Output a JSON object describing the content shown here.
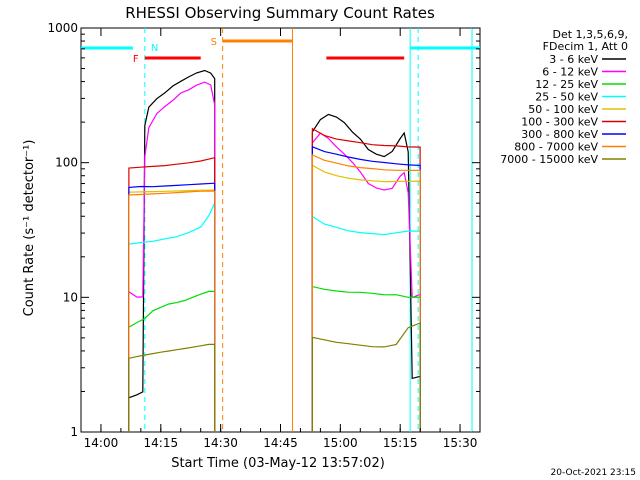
{
  "chart_data": {
    "type": "line",
    "title": "RHESSI Observing Summary Count Rates",
    "xlabel": "Start Time (03-May-12 13:57:02)",
    "ylabel": "Count Rate (s⁻¹ detector⁻¹)",
    "yscale": "log",
    "ylim": [
      1,
      1000
    ],
    "xlim_minutes": [
      835,
      935
    ],
    "x_ticks": [
      {
        "label": "14:00",
        "minute": 840
      },
      {
        "label": "14:15",
        "minute": 855
      },
      {
        "label": "14:30",
        "minute": 870
      },
      {
        "label": "14:45",
        "minute": 885
      },
      {
        "label": "15:00",
        "minute": 900
      },
      {
        "label": "15:15",
        "minute": 915
      },
      {
        "label": "15:30",
        "minute": 930
      }
    ],
    "y_ticks": [
      {
        "label": "1",
        "value": 1
      },
      {
        "label": "10",
        "value": 10
      },
      {
        "label": "100",
        "value": 100
      },
      {
        "label": "1000",
        "value": 1000
      }
    ],
    "legend_header": [
      "Det 1,3,5,6,9,",
      "FDecim 1, Att 0"
    ],
    "legend_position": "right",
    "series": [
      {
        "name": "3 - 6 keV",
        "color": "#000000",
        "seg1": [
          [
            847,
            1.8
          ],
          [
            849,
            1.9
          ],
          [
            850.5,
            2.0
          ],
          [
            851,
            190
          ],
          [
            852,
            260
          ],
          [
            854,
            300
          ],
          [
            856,
            330
          ],
          [
            858,
            370
          ],
          [
            860,
            400
          ],
          [
            862,
            430
          ],
          [
            864,
            460
          ],
          [
            866,
            480
          ],
          [
            867.5,
            460
          ],
          [
            868.5,
            420
          ]
        ],
        "seg2": [
          [
            893,
            170
          ],
          [
            895,
            210
          ],
          [
            897,
            230
          ],
          [
            899,
            220
          ],
          [
            901,
            200
          ],
          [
            903,
            170
          ],
          [
            905,
            150
          ],
          [
            907,
            125
          ],
          [
            909,
            115
          ],
          [
            911,
            110
          ],
          [
            913,
            120
          ],
          [
            915,
            150
          ],
          [
            916,
            165
          ],
          [
            917,
            120
          ],
          [
            918,
            2.5
          ],
          [
            920,
            2.6
          ]
        ]
      },
      {
        "name": "6 - 12 keV",
        "color": "#ff00ff",
        "seg1": [
          [
            847,
            11
          ],
          [
            849,
            10
          ],
          [
            850.5,
            10
          ],
          [
            851,
            110
          ],
          [
            852,
            180
          ],
          [
            854,
            230
          ],
          [
            856,
            260
          ],
          [
            858,
            290
          ],
          [
            860,
            330
          ],
          [
            862,
            350
          ],
          [
            864,
            380
          ],
          [
            866,
            400
          ],
          [
            867.5,
            380
          ],
          [
            868.5,
            270
          ]
        ],
        "seg2": [
          [
            893,
            140
          ],
          [
            895,
            165
          ],
          [
            897,
            150
          ],
          [
            899,
            130
          ],
          [
            901,
            115
          ],
          [
            903,
            100
          ],
          [
            905,
            85
          ],
          [
            907,
            70
          ],
          [
            909,
            65
          ],
          [
            911,
            63
          ],
          [
            913,
            65
          ],
          [
            915,
            80
          ],
          [
            916,
            85
          ],
          [
            917,
            60
          ],
          [
            918,
            10
          ],
          [
            920,
            10.5
          ]
        ]
      },
      {
        "name": "12 - 25 keV",
        "color": "#00dd00",
        "seg1": [
          [
            847,
            6
          ],
          [
            849,
            6.5
          ],
          [
            851,
            7
          ],
          [
            853,
            8
          ],
          [
            855,
            8.5
          ],
          [
            857,
            9
          ],
          [
            859,
            9.2
          ],
          [
            861,
            9.5
          ],
          [
            863,
            10
          ],
          [
            865,
            10.5
          ],
          [
            867,
            11
          ],
          [
            868.5,
            11
          ]
        ],
        "seg2": [
          [
            893,
            12
          ],
          [
            896,
            11.5
          ],
          [
            899,
            11.2
          ],
          [
            902,
            11
          ],
          [
            905,
            11
          ],
          [
            908,
            10.8
          ],
          [
            911,
            10.5
          ],
          [
            914,
            10.5
          ],
          [
            917,
            10
          ],
          [
            920,
            10
          ]
        ]
      },
      {
        "name": "25 - 50 keV",
        "color": "#00ffff",
        "seg1": [
          [
            847,
            25
          ],
          [
            850,
            25.5
          ],
          [
            853,
            26
          ],
          [
            856,
            27
          ],
          [
            859,
            28
          ],
          [
            862,
            30
          ],
          [
            865,
            33
          ],
          [
            867,
            40
          ],
          [
            868.5,
            50
          ]
        ],
        "seg2": [
          [
            893,
            40
          ],
          [
            896,
            35
          ],
          [
            899,
            33
          ],
          [
            902,
            31
          ],
          [
            905,
            30
          ],
          [
            908,
            29.5
          ],
          [
            911,
            29
          ],
          [
            914,
            30
          ],
          [
            917,
            31
          ],
          [
            920,
            31
          ]
        ]
      },
      {
        "name": "50 - 100 keV",
        "color": "#e0c000",
        "seg1": [
          [
            847,
            60
          ],
          [
            850,
            60.5
          ],
          [
            853,
            61
          ],
          [
            856,
            61.5
          ],
          [
            859,
            62
          ],
          [
            862,
            62.5
          ],
          [
            865,
            63
          ],
          [
            868.5,
            63
          ]
        ],
        "seg2": [
          [
            893,
            95
          ],
          [
            896,
            85
          ],
          [
            899,
            80
          ],
          [
            902,
            77
          ],
          [
            905,
            75
          ],
          [
            908,
            74
          ],
          [
            911,
            73
          ],
          [
            914,
            73
          ],
          [
            917,
            73
          ],
          [
            920,
            73
          ]
        ]
      },
      {
        "name": "100 - 300 keV",
        "color": "#dd0000",
        "seg1": [
          [
            847,
            92
          ],
          [
            850,
            93
          ],
          [
            853,
            94
          ],
          [
            856,
            95
          ],
          [
            859,
            97
          ],
          [
            862,
            99
          ],
          [
            865,
            102
          ],
          [
            868.5,
            108
          ]
        ],
        "seg2": [
          [
            893,
            180
          ],
          [
            896,
            160
          ],
          [
            899,
            150
          ],
          [
            902,
            145
          ],
          [
            905,
            140
          ],
          [
            908,
            135
          ],
          [
            911,
            133
          ],
          [
            914,
            132
          ],
          [
            917,
            130
          ],
          [
            920,
            130
          ]
        ]
      },
      {
        "name": "300 - 800 keV",
        "color": "#0000ff",
        "seg1": [
          [
            847,
            65
          ],
          [
            850,
            66
          ],
          [
            853,
            66
          ],
          [
            856,
            67
          ],
          [
            859,
            68
          ],
          [
            862,
            69
          ],
          [
            865,
            70
          ],
          [
            868.5,
            71
          ]
        ],
        "seg2": [
          [
            893,
            130
          ],
          [
            896,
            120
          ],
          [
            899,
            115
          ],
          [
            902,
            110
          ],
          [
            905,
            106
          ],
          [
            908,
            103
          ],
          [
            911,
            101
          ],
          [
            914,
            99
          ],
          [
            917,
            97
          ],
          [
            920,
            96
          ]
        ]
      },
      {
        "name": "800 - 7000 keV",
        "color": "#ff8000",
        "seg1": [
          [
            847,
            58
          ],
          [
            850,
            58.5
          ],
          [
            853,
            59
          ],
          [
            856,
            59.5
          ],
          [
            859,
            60
          ],
          [
            862,
            60.5
          ],
          [
            865,
            61
          ],
          [
            868.5,
            61
          ]
        ],
        "seg2": [
          [
            893,
            115
          ],
          [
            896,
            105
          ],
          [
            899,
            100
          ],
          [
            902,
            95
          ],
          [
            905,
            92
          ],
          [
            908,
            90
          ],
          [
            911,
            88
          ],
          [
            914,
            87
          ],
          [
            917,
            87
          ],
          [
            920,
            87
          ]
        ]
      },
      {
        "name": "7000 - 15000 keV",
        "color": "#808000",
        "seg1": [
          [
            847,
            3.5
          ],
          [
            849,
            3.6
          ],
          [
            851,
            3.7
          ],
          [
            853,
            3.8
          ],
          [
            855,
            3.9
          ],
          [
            857,
            4.0
          ],
          [
            859,
            4.1
          ],
          [
            861,
            4.2
          ],
          [
            863,
            4.3
          ],
          [
            865,
            4.4
          ],
          [
            867,
            4.5
          ],
          [
            868.5,
            4.5
          ]
        ],
        "seg2": [
          [
            893,
            5
          ],
          [
            896,
            4.8
          ],
          [
            899,
            4.6
          ],
          [
            902,
            4.5
          ],
          [
            905,
            4.4
          ],
          [
            908,
            4.3
          ],
          [
            911,
            4.3
          ],
          [
            914,
            4.5
          ],
          [
            917,
            6
          ],
          [
            920,
            6.5
          ]
        ]
      }
    ],
    "annotations": [
      {
        "label": "N",
        "color": "#00ffff",
        "bars": [
          [
            835,
            848
          ],
          [
            917.5,
            935
          ]
        ],
        "lines": [
          851,
          917.5,
          919.5,
          933
        ]
      },
      {
        "label": "F",
        "color": "#ff0000",
        "bars": [
          [
            851,
            865
          ],
          [
            896.5,
            916
          ]
        ],
        "lines": []
      },
      {
        "label": "S",
        "color": "#ff8000",
        "bars": [
          [
            870.5,
            888
          ]
        ],
        "lines": [
          870.5,
          888
        ]
      }
    ],
    "grid": false
  },
  "footer_timestamp": "20-Oct-2021 23:15"
}
